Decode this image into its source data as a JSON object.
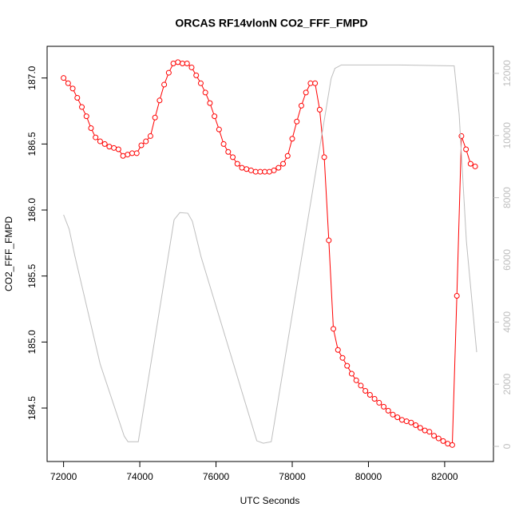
{
  "chart_data": {
    "type": "line",
    "title": "ORCAS RF14vlonN CO2_FFF_FMPD",
    "xlabel": "UTC Seconds",
    "ylabel": "CO2_FFF_FMPD",
    "xlim": [
      71568,
      83280
    ],
    "ylim": [
      184.095,
      187.24
    ],
    "y2lim": [
      -487,
      12870
    ],
    "xticks": [
      72000,
      74000,
      76000,
      78000,
      80000,
      82000
    ],
    "yticks": [
      184.5,
      {
        "value": 185,
        "label": "185.0"
      },
      185.5,
      {
        "value": 186,
        "label": "186.0"
      },
      186.5,
      {
        "value": 187,
        "label": "187.0"
      }
    ],
    "y2ticks": [
      0,
      2000,
      4000,
      6000,
      8000,
      10000,
      12000
    ],
    "series": [
      {
        "color": "#ff0000",
        "marker": "circle",
        "x": [
          72000,
          72120,
          72240,
          72360,
          72480,
          72600,
          72720,
          72840,
          72960,
          73080,
          73200,
          73320,
          73440,
          73560,
          73680,
          73800,
          73920,
          74040,
          74160,
          74280,
          74400,
          74520,
          74640,
          74760,
          74880,
          75000,
          75120,
          75240,
          75360,
          75480,
          75600,
          75720,
          75840,
          75960,
          76080,
          76200,
          76320,
          76440,
          76560,
          76680,
          76800,
          76920,
          77040,
          77160,
          77280,
          77400,
          77520,
          77640,
          77760,
          77880,
          78000,
          78120,
          78240,
          78360,
          78480,
          78600,
          78720,
          78840,
          78960,
          79080,
          79200,
          79320,
          79440,
          79560,
          79680,
          79800,
          79920,
          80040,
          80160,
          80280,
          80400,
          80520,
          80640,
          80760,
          80880,
          81000,
          81120,
          81240,
          81360,
          81480,
          81600,
          81720,
          81840,
          81960,
          82080,
          82200,
          82320,
          82440,
          82560,
          82680,
          82800
        ],
        "values": [
          187.0,
          186.96,
          186.92,
          186.85,
          186.78,
          186.71,
          186.62,
          186.55,
          186.52,
          186.5,
          186.48,
          186.47,
          186.46,
          186.41,
          186.42,
          186.43,
          186.43,
          186.49,
          186.52,
          186.56,
          186.7,
          186.83,
          186.95,
          187.04,
          187.11,
          187.12,
          187.11,
          187.11,
          187.08,
          187.02,
          186.96,
          186.89,
          186.81,
          186.71,
          186.61,
          186.5,
          186.44,
          186.4,
          186.35,
          186.32,
          186.31,
          186.3,
          186.29,
          186.29,
          186.29,
          186.29,
          186.3,
          186.32,
          186.35,
          186.41,
          186.54,
          186.67,
          186.79,
          186.89,
          186.96,
          186.96,
          186.76,
          186.4,
          185.77,
          185.1,
          184.94,
          184.88,
          184.82,
          184.76,
          184.71,
          184.67,
          184.63,
          184.6,
          184.57,
          184.54,
          184.51,
          184.48,
          184.45,
          184.43,
          184.41,
          184.4,
          184.39,
          184.37,
          184.35,
          184.33,
          184.32,
          184.29,
          184.27,
          184.25,
          184.23,
          184.22,
          185.35,
          186.56,
          186.46,
          186.35,
          186.33
        ]
      },
      {
        "color": "#bebebe",
        "axis": "y2",
        "x": [
          72000,
          72146,
          72292,
          72960,
          73590,
          73690,
          73960,
          74900,
          75050,
          75260,
          75380,
          75610,
          77070,
          77240,
          77450,
          79020,
          79120,
          79290,
          80790,
          82250,
          82380,
          82570,
          82840
        ],
        "values": [
          7450,
          6990,
          6150,
          2650,
          330,
          150,
          150,
          7290,
          7520,
          7500,
          7240,
          6090,
          180,
          100,
          150,
          11830,
          12160,
          12270,
          12270,
          12240,
          10680,
          6600,
          3030
        ]
      }
    ]
  }
}
